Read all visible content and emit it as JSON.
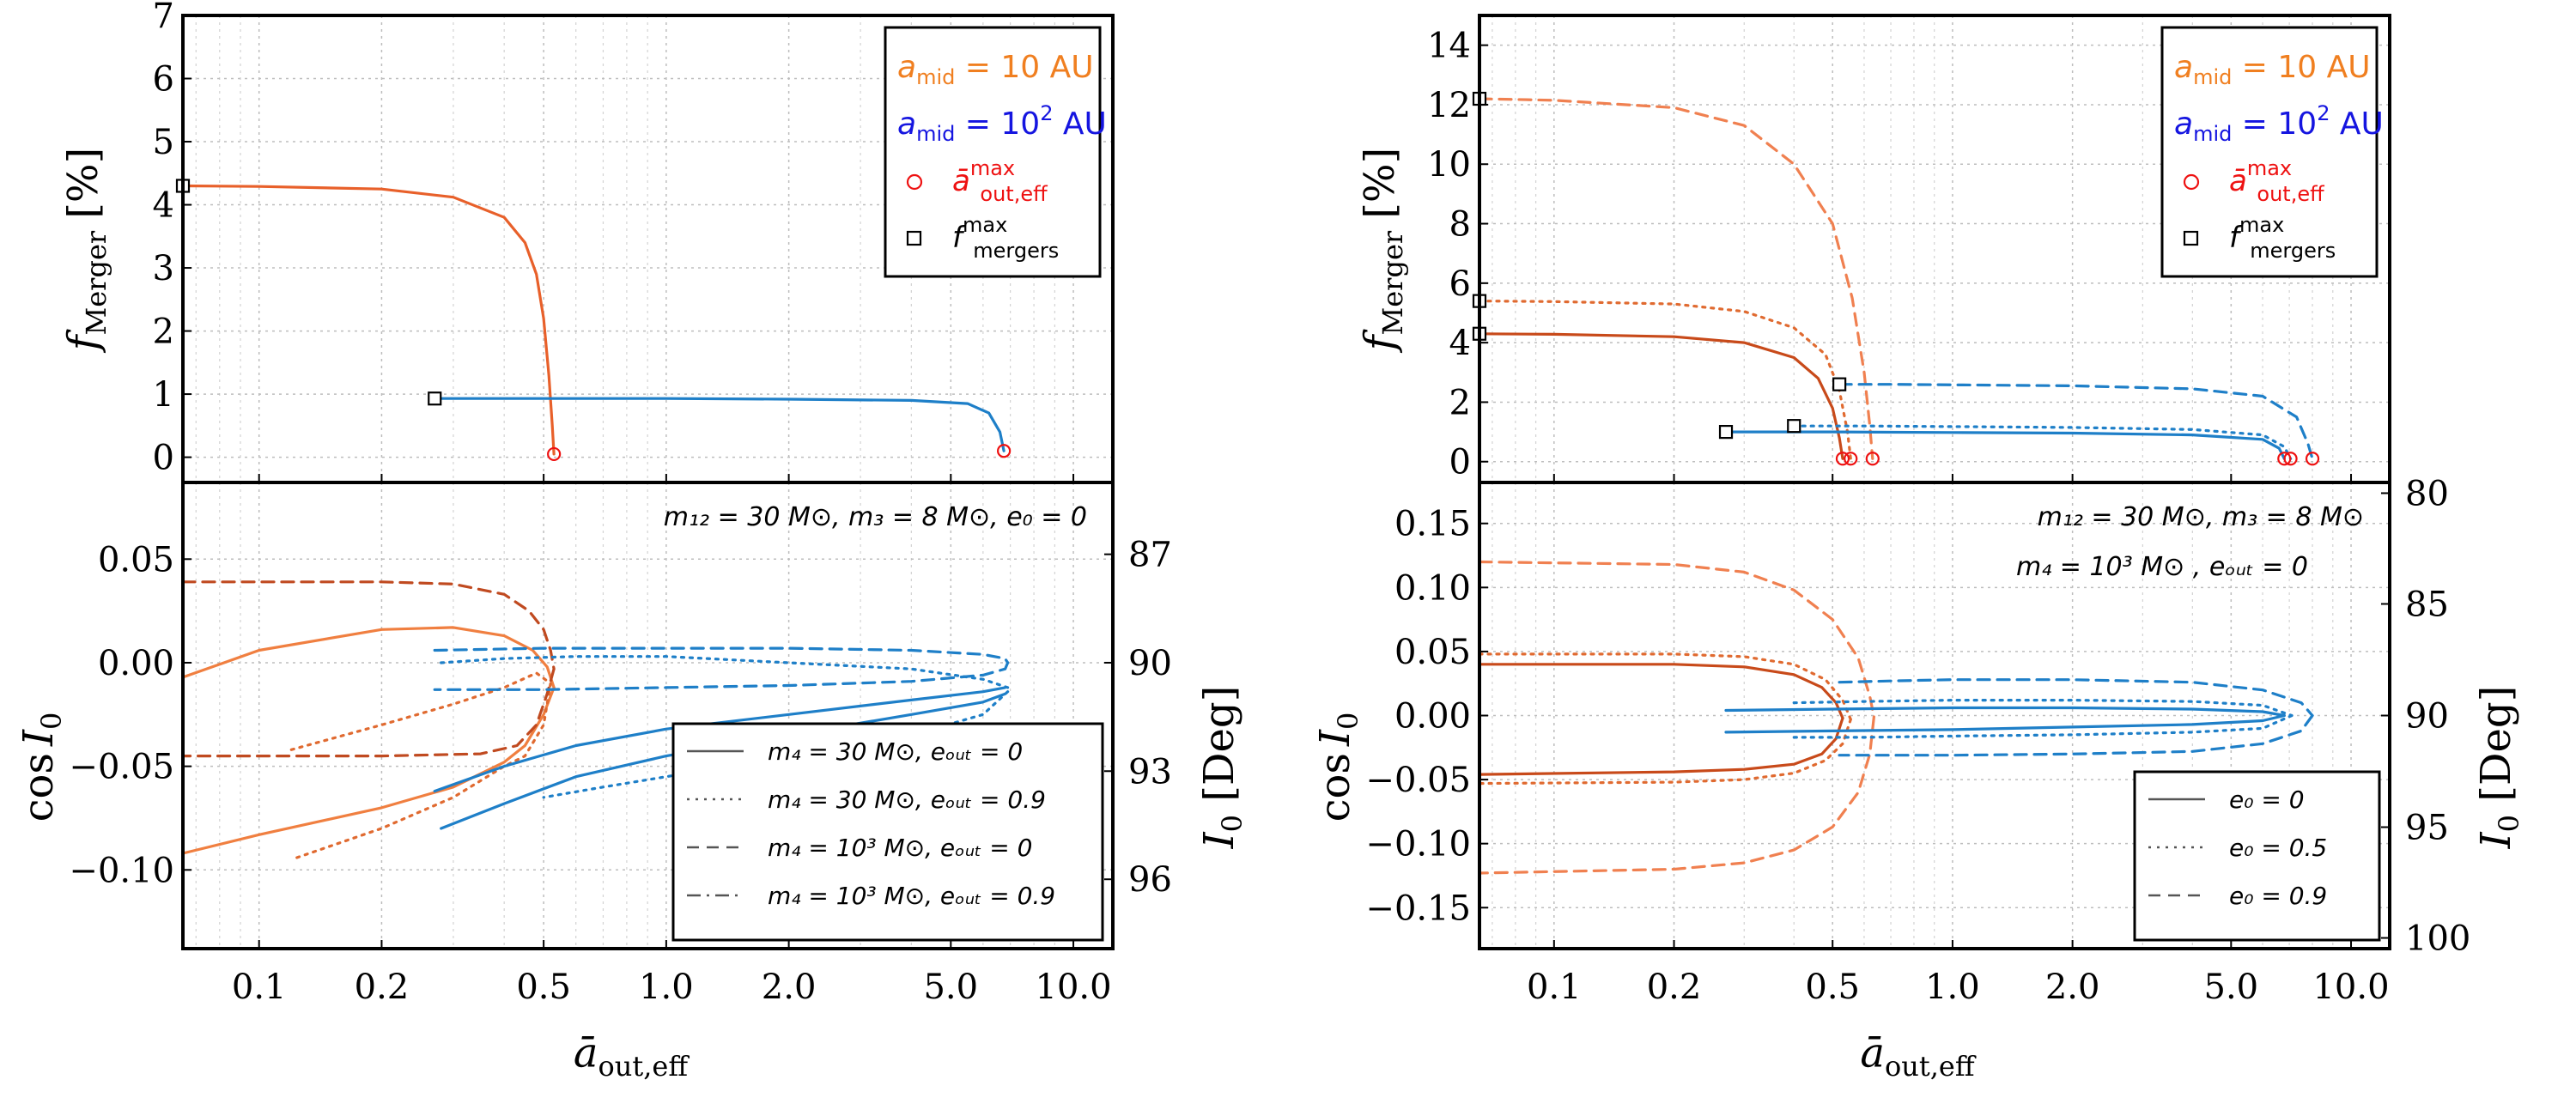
{
  "chart_data": [
    {
      "panel": "left-top",
      "type": "line",
      "x_scale": "log",
      "xlim": [
        0.065,
        12.5
      ],
      "ylim": [
        -0.4,
        7
      ],
      "ylabel_main": "f",
      "ylabel_sub": "Merger",
      "ylabel_unit": "[%]",
      "y_ticks": [
        0,
        1,
        2,
        3,
        4,
        5,
        6,
        7
      ],
      "legend": [
        {
          "main": "a",
          "sub": "mid",
          "rest": " = 10 AU",
          "color": "#f07f20",
          "kind": "text"
        },
        {
          "main": "a",
          "sub": "mid",
          "rest": " = 10",
          "sup": "2",
          "rest2": " AU",
          "color": "#1515e0",
          "kind": "text"
        },
        {
          "main": "ā",
          "sup": "max",
          "sub": "out,eff",
          "color": "#ee1111",
          "kind": "circle"
        },
        {
          "main": "f",
          "sup": "max",
          "sub": "mergers",
          "color": "#000000",
          "kind": "square"
        }
      ],
      "series": [
        {
          "color": "#e8602a",
          "dash": "solid",
          "x": [
            0.065,
            0.1,
            0.2,
            0.3,
            0.4,
            0.45,
            0.48,
            0.5,
            0.515,
            0.525,
            0.53
          ],
          "y": [
            4.3,
            4.29,
            4.25,
            4.12,
            3.8,
            3.4,
            2.9,
            2.2,
            1.3,
            0.5,
            0.05
          ]
        },
        {
          "color": "#1e7fc8",
          "dash": "solid",
          "x": [
            0.27,
            0.5,
            1.0,
            2.0,
            4.0,
            5.5,
            6.2,
            6.6,
            6.75
          ],
          "y": [
            0.93,
            0.93,
            0.93,
            0.92,
            0.9,
            0.85,
            0.7,
            0.4,
            0.1
          ]
        }
      ],
      "circles": [
        {
          "x": 0.53,
          "y": 0.05
        },
        {
          "x": 6.75,
          "y": 0.1
        }
      ],
      "squares": [
        {
          "x": 0.065,
          "y": 4.3
        },
        {
          "x": 0.27,
          "y": 0.93
        }
      ]
    },
    {
      "panel": "left-bottom",
      "type": "line",
      "x_scale": "log",
      "xlim": [
        0.065,
        12.5
      ],
      "ylim": [
        -0.138,
        0.087
      ],
      "ylabel_left": "cos",
      "ylabel_left_var": "I",
      "ylabel_left_sub": "0",
      "ylabel_right": "I",
      "ylabel_right_sub": "0",
      "ylabel_right_unit": " [Deg]",
      "y_ticks": [
        0.05,
        0.0,
        -0.05,
        -0.1
      ],
      "y_tick_labels": [
        "0.05",
        "0.00",
        "−0.05",
        "−0.10"
      ],
      "right_ticks": [
        87,
        90,
        93,
        96
      ],
      "x_ticks": [
        0.1,
        0.2,
        0.5,
        1.0,
        2.0,
        5.0,
        10.0
      ],
      "x_tick_labels": [
        "0.1",
        "0.2",
        "0.5",
        "1.0",
        "2.0",
        "5.0",
        "10.0"
      ],
      "xlabel_main": "ā",
      "xlabel_sub": "out,eff",
      "annotation": "m₁₂ = 30 M⊙, m₃ = 8 M⊙, e₀ = 0",
      "legend": [
        {
          "label": "m₄ = 30 M⊙, eₒᵤₜ = 0",
          "dash": "solid"
        },
        {
          "label": "m₄ = 30 M⊙, eₒᵤₜ = 0.9",
          "dash": "dotted"
        },
        {
          "label": "m₄ = 10³ M⊙, eₒᵤₜ = 0",
          "dash": "dashed"
        },
        {
          "label": "m₄ = 10³ M⊙, eₒᵤₜ = 0.9",
          "dash": "dashdot"
        }
      ],
      "series": [
        {
          "color": "#f07f40",
          "dash": "solid",
          "x": [
            0.065,
            0.1,
            0.2,
            0.3,
            0.4,
            0.47,
            0.51,
            0.53
          ],
          "y": [
            -0.007,
            0.006,
            0.016,
            0.017,
            0.013,
            0.006,
            -0.002,
            -0.012
          ]
        },
        {
          "color": "#f07f40",
          "dash": "solid",
          "x": [
            0.53,
            0.5,
            0.45,
            0.4,
            0.3,
            0.2,
            0.1,
            0.065
          ],
          "y": [
            -0.012,
            -0.025,
            -0.04,
            -0.048,
            -0.06,
            -0.07,
            -0.083,
            -0.092
          ]
        },
        {
          "color": "#e06a30",
          "dash": "dotted",
          "x": [
            0.12,
            0.2,
            0.3,
            0.4,
            0.48,
            0.52
          ],
          "y": [
            -0.042,
            -0.03,
            -0.02,
            -0.012,
            -0.005,
            -0.01
          ]
        },
        {
          "color": "#e06a30",
          "dash": "dotted",
          "x": [
            0.52,
            0.5,
            0.45,
            0.4,
            0.3,
            0.2,
            0.12
          ],
          "y": [
            -0.01,
            -0.03,
            -0.045,
            -0.05,
            -0.065,
            -0.08,
            -0.095
          ]
        },
        {
          "color": "#c04a20",
          "dash": "dashed",
          "x": [
            0.065,
            0.2,
            0.3,
            0.4,
            0.46,
            0.5,
            0.52,
            0.53
          ],
          "y": [
            0.039,
            0.039,
            0.038,
            0.033,
            0.025,
            0.016,
            0.006,
            -0.003
          ]
        },
        {
          "color": "#c04a20",
          "dash": "dashed",
          "x": [
            0.53,
            0.51,
            0.48,
            0.43,
            0.35,
            0.2,
            0.065
          ],
          "y": [
            -0.003,
            -0.015,
            -0.03,
            -0.04,
            -0.044,
            -0.045,
            -0.045
          ]
        },
        {
          "color": "#1e7fc8",
          "dash": "dashed",
          "x": [
            0.27,
            0.5,
            1.0,
            2.0,
            4.0,
            6.0,
            6.8,
            6.9
          ],
          "y": [
            0.006,
            0.007,
            0.007,
            0.007,
            0.006,
            0.004,
            0.002,
            0.0
          ]
        },
        {
          "color": "#1e7fc8",
          "dash": "dashed",
          "x": [
            6.9,
            6.8,
            6.0,
            4.0,
            2.0,
            1.0,
            0.5,
            0.27
          ],
          "y": [
            0.0,
            -0.003,
            -0.006,
            -0.009,
            -0.011,
            -0.012,
            -0.013,
            -0.013
          ]
        },
        {
          "color": "#1e7fc8",
          "dash": "solid",
          "x": [
            0.27,
            0.4,
            0.6,
            1.0,
            2.0,
            4.0,
            6.0,
            6.8
          ],
          "y": [
            -0.062,
            -0.05,
            -0.04,
            -0.032,
            -0.025,
            -0.018,
            -0.014,
            -0.012
          ]
        },
        {
          "color": "#1e7fc8",
          "dash": "solid",
          "x": [
            6.8,
            6.0,
            4.0,
            2.0,
            1.0,
            0.6,
            0.4,
            0.28
          ],
          "y": [
            -0.015,
            -0.019,
            -0.025,
            -0.035,
            -0.045,
            -0.055,
            -0.068,
            -0.08
          ]
        },
        {
          "color": "#1e7fc8",
          "dash": "dotted",
          "x": [
            0.28,
            0.4,
            0.6,
            1.0,
            2.0,
            4.0,
            6.0,
            6.9
          ],
          "y": [
            0.0,
            0.002,
            0.003,
            0.003,
            0.0,
            -0.003,
            -0.008,
            -0.012
          ]
        },
        {
          "color": "#1e7fc8",
          "dash": "dotted",
          "x": [
            6.9,
            6.0,
            4.0,
            2.0,
            1.0,
            0.7,
            0.5
          ],
          "y": [
            -0.014,
            -0.025,
            -0.035,
            -0.045,
            -0.055,
            -0.06,
            -0.065
          ]
        }
      ]
    },
    {
      "panel": "right-top",
      "type": "line",
      "x_scale": "log",
      "xlim": [
        0.065,
        12.5
      ],
      "ylim": [
        -0.7,
        15
      ],
      "ylabel_main": "f",
      "ylabel_sub": "Merger",
      "ylabel_unit": "[%]",
      "y_ticks": [
        0,
        2,
        4,
        6,
        8,
        10,
        12,
        14
      ],
      "legend": [
        {
          "main": "a",
          "sub": "mid",
          "rest": " = 10 AU",
          "color": "#f07f20",
          "kind": "text"
        },
        {
          "main": "a",
          "sub": "mid",
          "rest": " = 10",
          "sup": "2",
          "rest2": " AU",
          "color": "#1515e0",
          "kind": "text"
        },
        {
          "main": "ā",
          "sup": "max",
          "sub": "out,eff",
          "color": "#ee1111",
          "kind": "circle"
        },
        {
          "main": "f",
          "sup": "max",
          "sub": "mergers",
          "color": "#000000",
          "kind": "square"
        }
      ],
      "series": [
        {
          "color": "#c84a1a",
          "dash": "solid",
          "x": [
            0.065,
            0.1,
            0.2,
            0.3,
            0.4,
            0.46,
            0.5,
            0.52,
            0.53
          ],
          "y": [
            4.3,
            4.28,
            4.2,
            4.0,
            3.5,
            2.8,
            1.8,
            0.8,
            0.1
          ]
        },
        {
          "color": "#e06a30",
          "dash": "dotted",
          "x": [
            0.065,
            0.1,
            0.2,
            0.3,
            0.4,
            0.48,
            0.52,
            0.545,
            0.555
          ],
          "y": [
            5.4,
            5.38,
            5.3,
            5.05,
            4.5,
            3.6,
            2.4,
            1.0,
            0.1
          ]
        },
        {
          "color": "#f08050",
          "dash": "dashed",
          "x": [
            0.065,
            0.1,
            0.2,
            0.3,
            0.4,
            0.5,
            0.56,
            0.6,
            0.62,
            0.63
          ],
          "y": [
            12.2,
            12.15,
            11.9,
            11.3,
            10.0,
            8.0,
            5.5,
            3.0,
            1.2,
            0.1
          ]
        },
        {
          "color": "#1e7fc8",
          "dash": "solid",
          "x": [
            0.27,
            0.5,
            1.0,
            2.0,
            4.0,
            6.0,
            6.6,
            6.8
          ],
          "y": [
            1.0,
            1.0,
            0.98,
            0.96,
            0.9,
            0.75,
            0.45,
            0.1
          ]
        },
        {
          "color": "#1e7fc8",
          "dash": "dotted",
          "x": [
            0.4,
            0.6,
            1.0,
            2.0,
            4.0,
            6.0,
            6.8,
            7.05
          ],
          "y": [
            1.2,
            1.2,
            1.18,
            1.15,
            1.08,
            0.9,
            0.5,
            0.1
          ]
        },
        {
          "color": "#1e7fc8",
          "dash": "dashed",
          "x": [
            0.52,
            0.7,
            1.0,
            2.0,
            4.0,
            6.0,
            7.3,
            7.8,
            8.0
          ],
          "y": [
            2.6,
            2.6,
            2.58,
            2.55,
            2.45,
            2.2,
            1.5,
            0.6,
            0.1
          ]
        }
      ],
      "circles": [
        {
          "x": 0.53,
          "y": 0.1
        },
        {
          "x": 0.555,
          "y": 0.1
        },
        {
          "x": 0.63,
          "y": 0.1
        },
        {
          "x": 6.8,
          "y": 0.1
        },
        {
          "x": 7.05,
          "y": 0.1
        },
        {
          "x": 8.0,
          "y": 0.1
        }
      ],
      "squares": [
        {
          "x": 0.065,
          "y": 12.2
        },
        {
          "x": 0.065,
          "y": 5.4
        },
        {
          "x": 0.065,
          "y": 4.3
        },
        {
          "x": 0.27,
          "y": 1.0
        },
        {
          "x": 0.4,
          "y": 1.2
        },
        {
          "x": 0.52,
          "y": 2.6
        }
      ]
    },
    {
      "panel": "right-bottom",
      "type": "line",
      "x_scale": "log",
      "xlim": [
        0.065,
        12.5
      ],
      "ylim": [
        -0.182,
        0.182
      ],
      "ylabel_left": "cos",
      "ylabel_left_var": "I",
      "ylabel_left_sub": "0",
      "ylabel_right": "I",
      "ylabel_right_sub": "0",
      "ylabel_right_unit": " [Deg]",
      "y_ticks": [
        0.15,
        0.1,
        0.05,
        0.0,
        -0.05,
        -0.1,
        -0.15
      ],
      "y_tick_labels": [
        "0.15",
        "0.10",
        "0.05",
        "0.00",
        "−0.05",
        "−0.10",
        "−0.15"
      ],
      "right_ticks": [
        80,
        85,
        90,
        95,
        100
      ],
      "x_ticks": [
        0.1,
        0.2,
        0.5,
        1.0,
        2.0,
        5.0,
        10.0
      ],
      "x_tick_labels": [
        "0.1",
        "0.2",
        "0.5",
        "1.0",
        "2.0",
        "5.0",
        "10.0"
      ],
      "xlabel_main": "ā",
      "xlabel_sub": "out,eff",
      "annotation": "m₁₂ = 30 M⊙, m₃ = 8 M⊙",
      "annotation2": "m₄ = 10³ M⊙ , eₒᵤₜ = 0",
      "legend": [
        {
          "label": "e₀ = 0",
          "dash": "solid"
        },
        {
          "label": "e₀ = 0.5",
          "dash": "dotted"
        },
        {
          "label": "e₀ = 0.9",
          "dash": "dashed"
        }
      ],
      "series": [
        {
          "color": "#c84a1a",
          "dash": "solid",
          "x": [
            0.065,
            0.2,
            0.3,
            0.4,
            0.47,
            0.51,
            0.53
          ],
          "y": [
            0.04,
            0.04,
            0.038,
            0.032,
            0.022,
            0.01,
            -0.002
          ]
        },
        {
          "color": "#c84a1a",
          "dash": "solid",
          "x": [
            0.53,
            0.51,
            0.47,
            0.4,
            0.3,
            0.2,
            0.065
          ],
          "y": [
            -0.002,
            -0.018,
            -0.03,
            -0.038,
            -0.042,
            -0.044,
            -0.046
          ]
        },
        {
          "color": "#e06a30",
          "dash": "dotted",
          "x": [
            0.065,
            0.2,
            0.3,
            0.4,
            0.48,
            0.53,
            0.555
          ],
          "y": [
            0.048,
            0.048,
            0.046,
            0.04,
            0.028,
            0.012,
            -0.003
          ]
        },
        {
          "color": "#e06a30",
          "dash": "dotted",
          "x": [
            0.555,
            0.53,
            0.48,
            0.4,
            0.3,
            0.2,
            0.065
          ],
          "y": [
            -0.003,
            -0.022,
            -0.035,
            -0.045,
            -0.05,
            -0.052,
            -0.053
          ]
        },
        {
          "color": "#f08050",
          "dash": "dashed",
          "x": [
            0.065,
            0.2,
            0.3,
            0.4,
            0.5,
            0.58,
            0.62,
            0.635
          ],
          "y": [
            0.12,
            0.118,
            0.112,
            0.098,
            0.075,
            0.045,
            0.015,
            -0.001
          ]
        },
        {
          "color": "#f08050",
          "dash": "dashed",
          "x": [
            0.635,
            0.62,
            0.58,
            0.5,
            0.4,
            0.3,
            0.2,
            0.065
          ],
          "y": [
            -0.001,
            -0.03,
            -0.06,
            -0.087,
            -0.105,
            -0.115,
            -0.12,
            -0.123
          ]
        },
        {
          "color": "#1e7fc8",
          "dash": "solid",
          "x": [
            0.27,
            0.5,
            1.0,
            2.0,
            4.0,
            6.0,
            6.8
          ],
          "y": [
            0.004,
            0.005,
            0.006,
            0.006,
            0.005,
            0.003,
            0.0
          ]
        },
        {
          "color": "#1e7fc8",
          "dash": "solid",
          "x": [
            6.8,
            6.0,
            4.0,
            2.0,
            1.0,
            0.5,
            0.27
          ],
          "y": [
            0.0,
            -0.004,
            -0.007,
            -0.009,
            -0.011,
            -0.012,
            -0.013
          ]
        },
        {
          "color": "#1e7fc8",
          "dash": "dotted",
          "x": [
            0.4,
            0.6,
            1.0,
            2.0,
            4.0,
            6.0,
            7.1
          ],
          "y": [
            0.01,
            0.011,
            0.012,
            0.012,
            0.011,
            0.008,
            0.0
          ]
        },
        {
          "color": "#1e7fc8",
          "dash": "dotted",
          "x": [
            7.1,
            6.0,
            4.0,
            2.0,
            1.0,
            0.6,
            0.4
          ],
          "y": [
            0.0,
            -0.01,
            -0.013,
            -0.015,
            -0.016,
            -0.017,
            -0.017
          ]
        },
        {
          "color": "#1e7fc8",
          "dash": "dashed",
          "x": [
            0.52,
            0.7,
            1.0,
            2.0,
            4.0,
            6.0,
            7.5,
            8.0
          ],
          "y": [
            0.026,
            0.027,
            0.028,
            0.028,
            0.026,
            0.02,
            0.01,
            0.0
          ]
        },
        {
          "color": "#1e7fc8",
          "dash": "dashed",
          "x": [
            8.0,
            7.5,
            6.0,
            4.0,
            2.0,
            1.0,
            0.7,
            0.52
          ],
          "y": [
            0.0,
            -0.012,
            -0.022,
            -0.028,
            -0.03,
            -0.031,
            -0.031,
            -0.031
          ]
        }
      ]
    }
  ]
}
